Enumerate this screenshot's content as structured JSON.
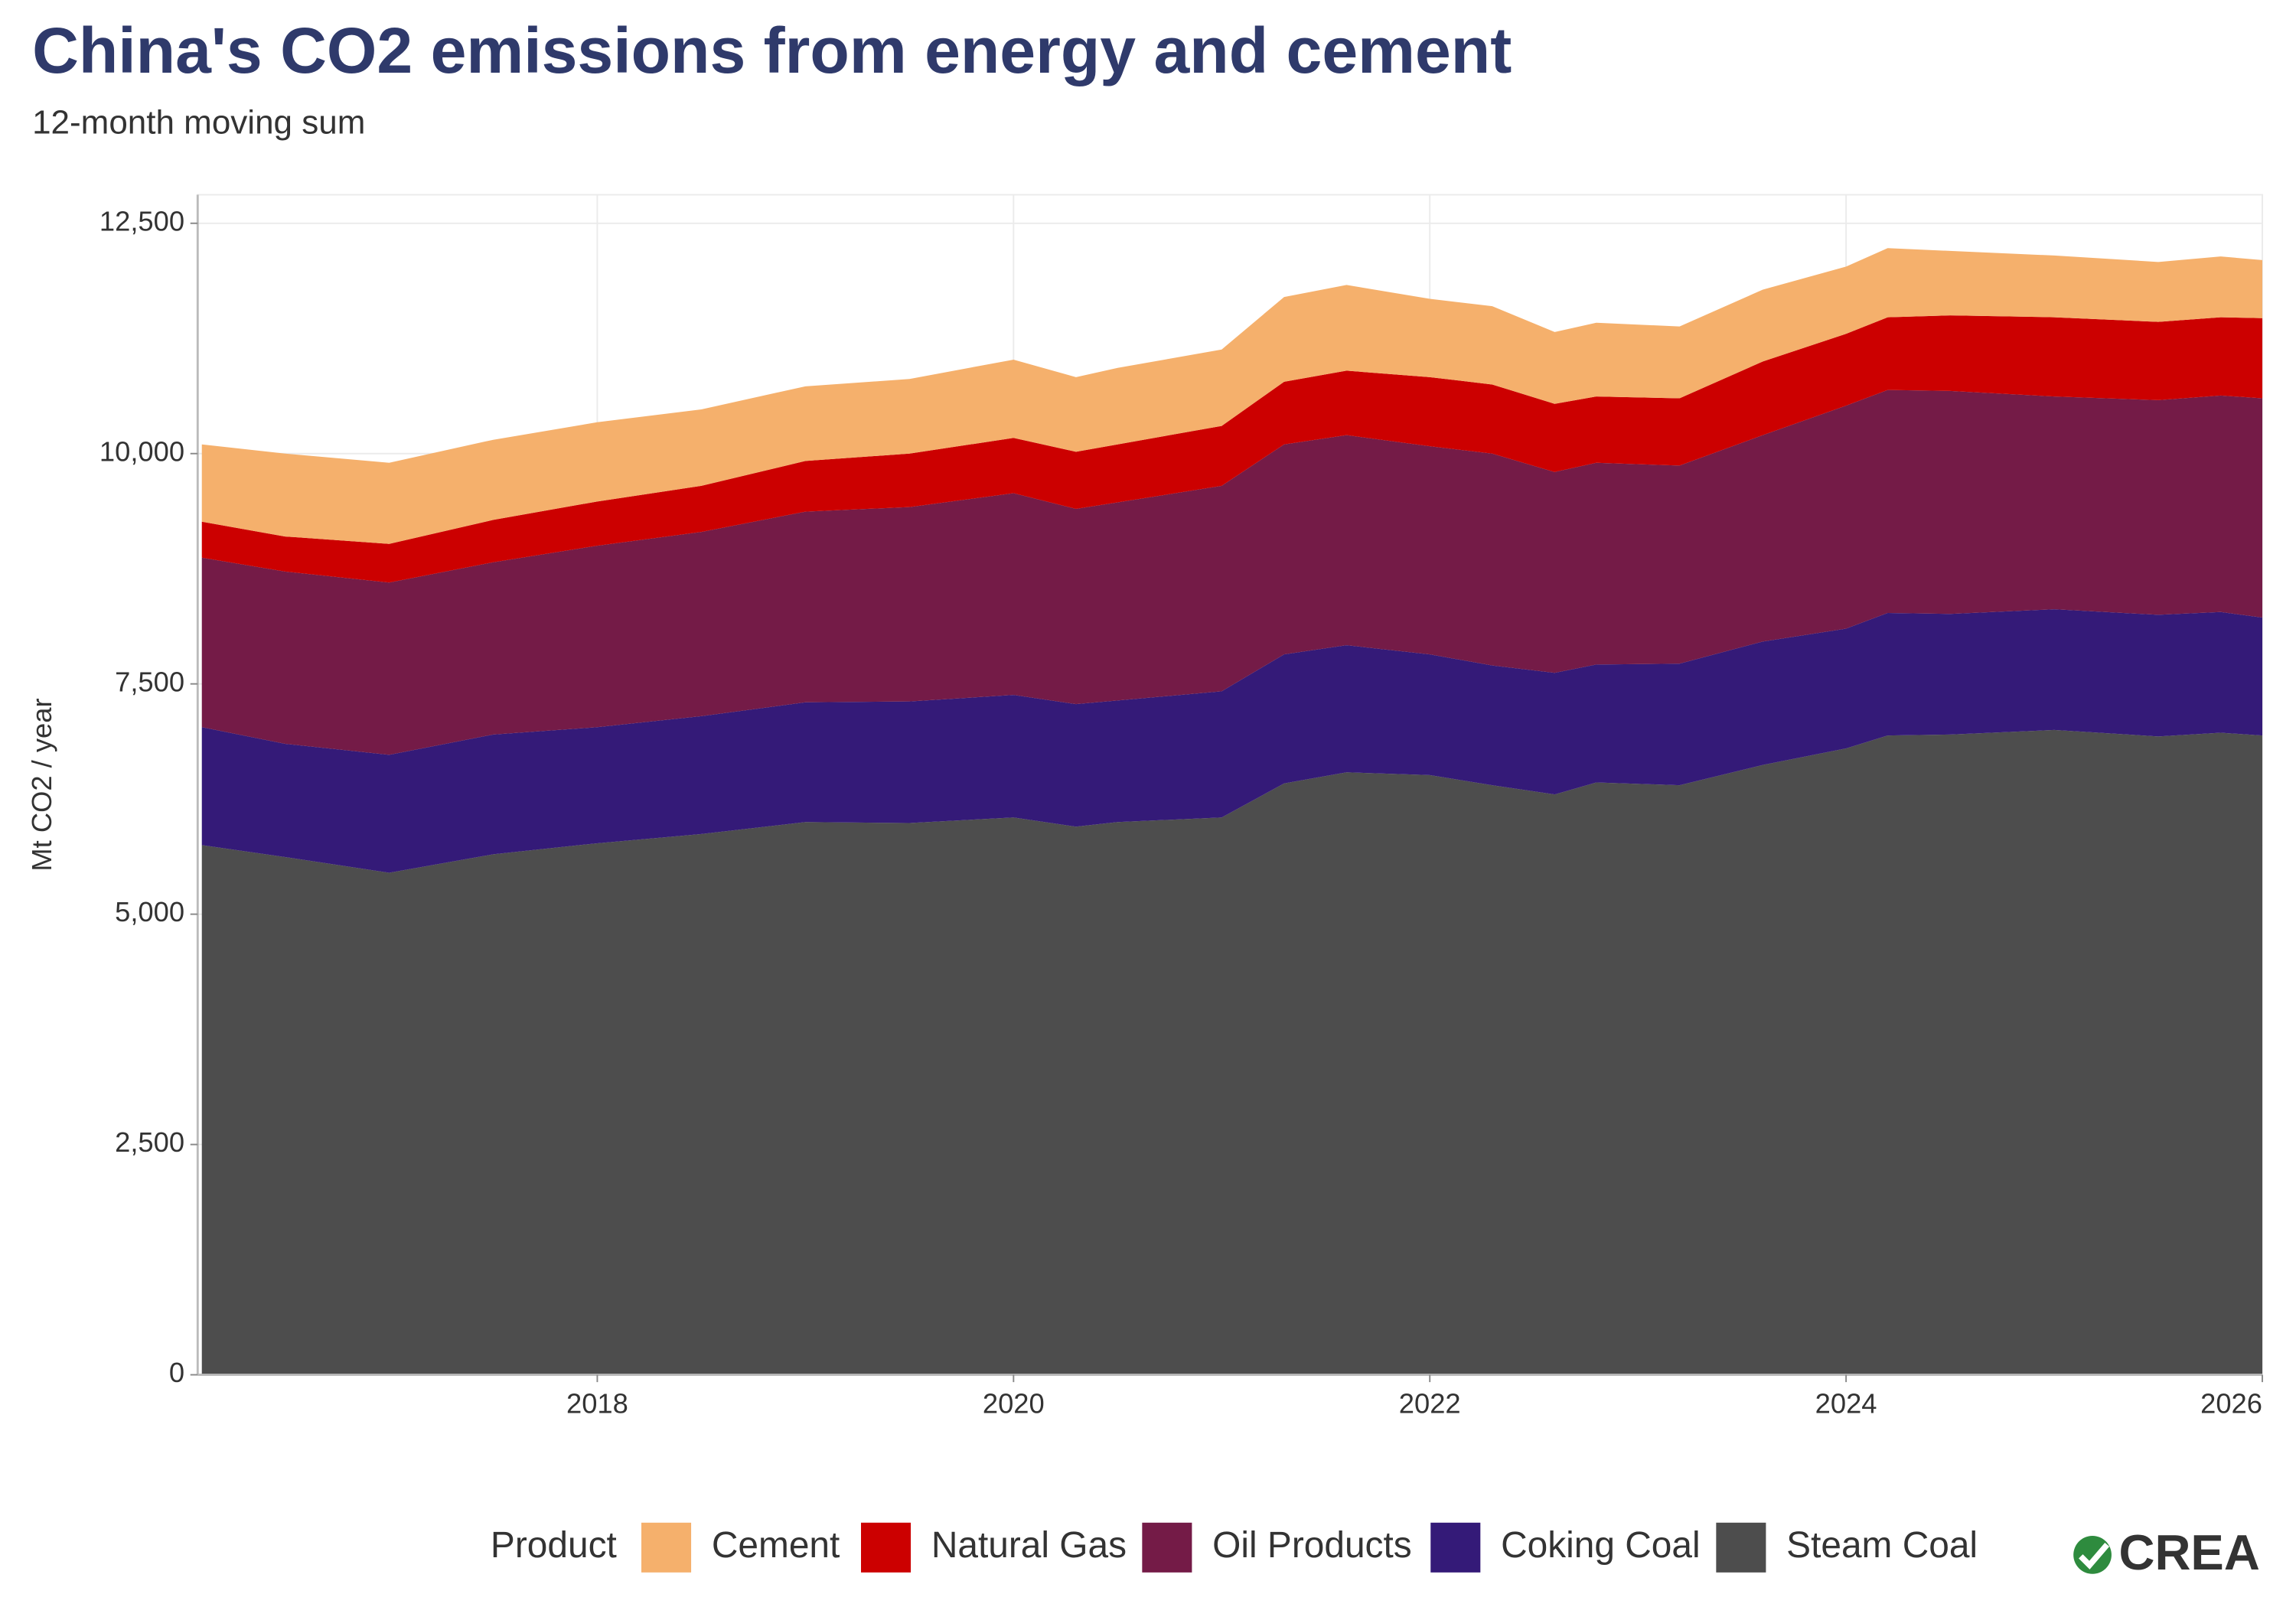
{
  "chart_data": {
    "type": "stacked_area",
    "title": "China's CO2 emissions from energy and cement",
    "subtitle": "12-month moving sum",
    "y_label": "Mt CO2 / year",
    "legend_title": "Product",
    "logo": "CREA",
    "x": [
      2016.1,
      2016.5,
      2017.0,
      2017.5,
      2018.0,
      2018.5,
      2019.0,
      2019.5,
      2020.0,
      2020.3,
      2020.5,
      2021.0,
      2021.3,
      2021.6,
      2022.0,
      2022.3,
      2022.6,
      2022.8,
      2023.2,
      2023.6,
      2024.0,
      2024.2,
      2024.5,
      2025.0,
      2025.5,
      2025.8,
      2026.0
    ],
    "series": [
      {
        "name": "Cement",
        "color": "#f5b06c",
        "values": [
          840,
          900,
          880,
          870,
          860,
          830,
          810,
          810,
          850,
          810,
          830,
          830,
          920,
          930,
          850,
          850,
          780,
          800,
          780,
          780,
          730,
          750,
          700,
          670,
          650,
          660,
          630
        ]
      },
      {
        "name": "Natural Gas",
        "color": "#cc0000",
        "values": [
          390,
          380,
          420,
          460,
          480,
          500,
          550,
          580,
          600,
          620,
          630,
          650,
          680,
          700,
          750,
          750,
          740,
          720,
          730,
          800,
          780,
          790,
          820,
          860,
          850,
          850,
          870
        ]
      },
      {
        "name": "Oil Products",
        "color": "#741b47",
        "values": [
          1840,
          1870,
          1870,
          1870,
          1970,
          2000,
          2070,
          2110,
          2190,
          2120,
          2150,
          2230,
          2280,
          2280,
          2260,
          2300,
          2180,
          2190,
          2150,
          2240,
          2420,
          2420,
          2420,
          2310,
          2330,
          2350,
          2380
        ]
      },
      {
        "name": "Coking Coal",
        "color": "#341a78",
        "values": [
          1280,
          1230,
          1280,
          1300,
          1260,
          1280,
          1300,
          1320,
          1330,
          1330,
          1320,
          1370,
          1400,
          1380,
          1310,
          1300,
          1320,
          1280,
          1320,
          1340,
          1300,
          1330,
          1310,
          1310,
          1320,
          1310,
          1280
        ]
      },
      {
        "name": "Steam Coal",
        "color": "#4d4d4d",
        "values": [
          5750,
          5620,
          5450,
          5650,
          5770,
          5870,
          6000,
          5990,
          6050,
          5950,
          6000,
          6050,
          6420,
          6540,
          6510,
          6400,
          6300,
          6430,
          6400,
          6620,
          6800,
          6940,
          6950,
          7000,
          6930,
          6970,
          6940
        ]
      }
    ],
    "xlim": [
      2016.08,
      2026
    ],
    "xticks": [
      2018,
      2020,
      2022,
      2024,
      2026
    ],
    "ylim": [
      0,
      12810
    ],
    "yticks": [
      0,
      {
        "value": 2500,
        "label": "2,500"
      },
      {
        "value": 5000,
        "label": "5,000"
      },
      {
        "value": 7500,
        "label": "7,500"
      },
      {
        "value": 10000,
        "label": "10,000"
      },
      {
        "value": 12500,
        "label": "12,500"
      }
    ],
    "grid": true
  }
}
